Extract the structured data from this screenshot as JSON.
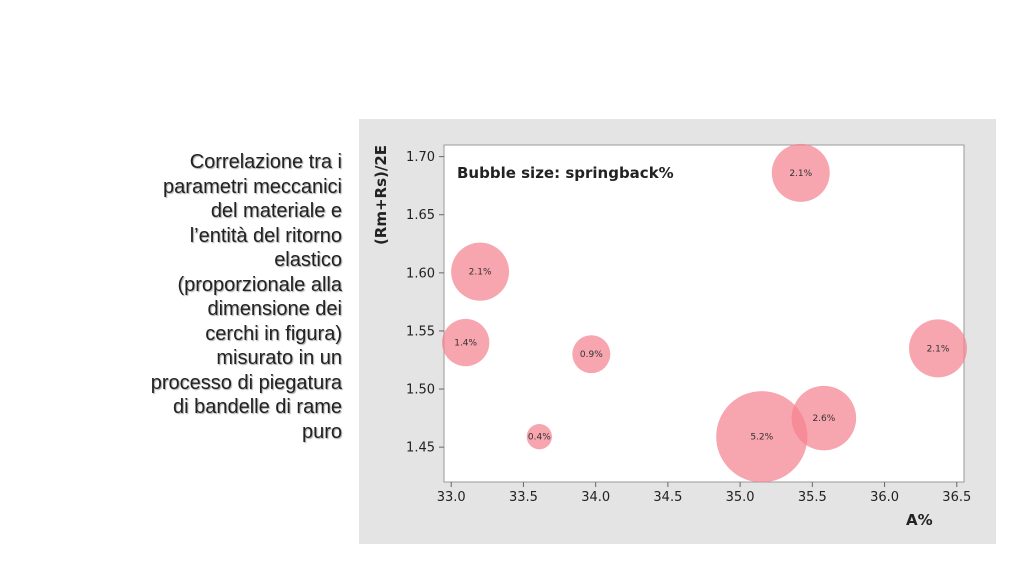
{
  "caption": "Correlazione tra i parametri meccanici del materiale e l’entità del ritorno elastico (proporzionale alla dimensione dei cerchi in figura) misurato in un processo di piegatura di bandelle di rame puro",
  "chart_data": {
    "type": "scatter",
    "subtype": "bubble",
    "xlabel": "A%",
    "ylabel": "(Rm+Rs)/2E",
    "annotation": "Bubble size: springback%",
    "xlim": [
      32.95,
      36.55
    ],
    "ylim": [
      1.42,
      1.71
    ],
    "xticks": [
      "33.0",
      "33.5",
      "34.0",
      "34.5",
      "35.0",
      "35.5",
      "36.0",
      "36.5"
    ],
    "yticks": [
      "1.45",
      "1.50",
      "1.55",
      "1.60",
      "1.65",
      "1.70"
    ],
    "grid": false,
    "bubble_color": "#f4828f",
    "points": [
      {
        "x": 35.42,
        "y": 1.686,
        "size": 2.1,
        "label": "2.1%"
      },
      {
        "x": 33.2,
        "y": 1.601,
        "size": 2.1,
        "label": "2.1%"
      },
      {
        "x": 33.1,
        "y": 1.54,
        "size": 1.4,
        "label": "1.4%"
      },
      {
        "x": 33.97,
        "y": 1.53,
        "size": 0.9,
        "label": "0.9%"
      },
      {
        "x": 36.37,
        "y": 1.535,
        "size": 2.1,
        "label": "2.1%"
      },
      {
        "x": 33.61,
        "y": 1.459,
        "size": 0.4,
        "label": "0.4%"
      },
      {
        "x": 35.58,
        "y": 1.475,
        "size": 2.6,
        "label": "2.6%"
      },
      {
        "x": 35.15,
        "y": 1.459,
        "size": 5.2,
        "label": "5.2%"
      }
    ]
  }
}
